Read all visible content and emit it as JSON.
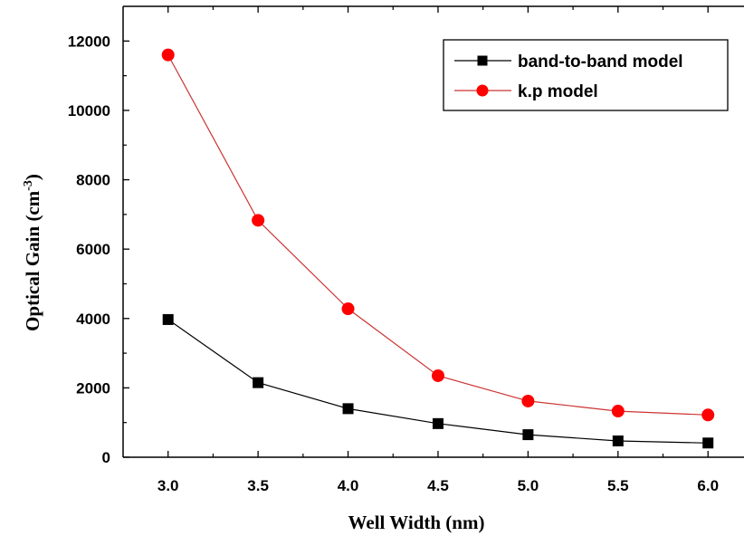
{
  "chart_data": {
    "type": "line",
    "title": "",
    "xlabel": "Well Width (nm)",
    "ylabel": "Optical Gain (cm",
    "ylabel_superscript": "-3",
    "ylabel_suffix": ")",
    "x": [
      3.0,
      3.5,
      4.0,
      4.5,
      5.0,
      5.5,
      6.0
    ],
    "xlim": [
      2.75,
      6.2
    ],
    "ylim": [
      0,
      13000
    ],
    "x_ticks": [
      "3.0",
      "3.5",
      "4.0",
      "4.5",
      "5.0",
      "5.5",
      "6.0"
    ],
    "y_ticks": [
      "0",
      "2000",
      "4000",
      "6000",
      "8000",
      "10000",
      "12000"
    ],
    "grid": false,
    "legend_position": "top-right",
    "series": [
      {
        "name": "band-to-band model",
        "color": "#000000",
        "marker": "square",
        "values": [
          3970,
          2150,
          1400,
          970,
          650,
          470,
          410
        ]
      },
      {
        "name": "k.p model",
        "color": "#ff0000",
        "line_color": "#cc3333",
        "marker": "circle",
        "values": [
          11600,
          6830,
          4280,
          2350,
          1620,
          1330,
          1220
        ]
      }
    ]
  }
}
